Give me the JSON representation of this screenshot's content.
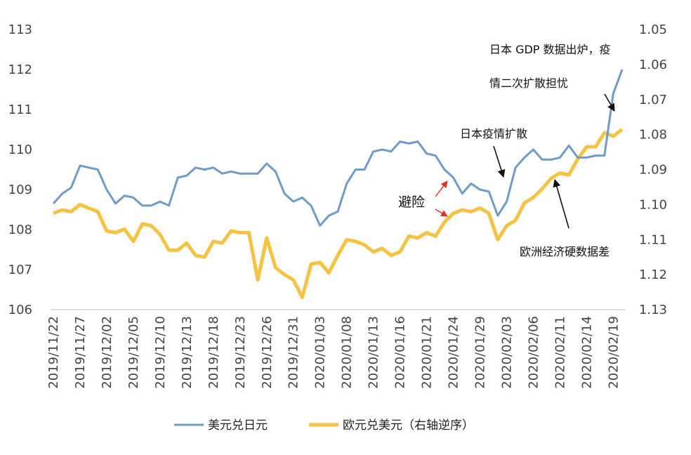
{
  "chart_data": {
    "type": "line",
    "categories": [
      "2019/11/22",
      null,
      null,
      "2019/11/27",
      null,
      null,
      "2019/12/02",
      null,
      null,
      "2019/12/05",
      null,
      null,
      "2019/12/10",
      null,
      null,
      "2019/12/13",
      null,
      null,
      "2019/12/18",
      null,
      null,
      "2019/12/23",
      null,
      null,
      "2019/12/26",
      null,
      null,
      "2019/12/31",
      null,
      null,
      "2020/01/03",
      null,
      null,
      "2020/01/08",
      null,
      null,
      "2020/01/13",
      null,
      null,
      "2020/01/16",
      null,
      null,
      "2020/01/21",
      null,
      null,
      "2020/01/24",
      null,
      null,
      "2020/01/29",
      null,
      null,
      "2020/02/03",
      null,
      null,
      "2020/02/06",
      null,
      null,
      "2020/02/11",
      null,
      null,
      "2020/02/14",
      null,
      null,
      "2020/02/19",
      null
    ],
    "series": [
      {
        "name": "美元兑日元",
        "color": "#6f9bc9",
        "values": [
          108.65,
          108.9,
          109.05,
          109.6,
          109.55,
          109.5,
          109.0,
          108.65,
          108.85,
          108.8,
          108.6,
          108.6,
          108.7,
          108.6,
          109.3,
          109.35,
          109.55,
          109.5,
          109.55,
          109.4,
          109.45,
          109.4,
          109.4,
          109.4,
          109.65,
          109.45,
          108.9,
          108.7,
          108.8,
          108.6,
          108.1,
          108.35,
          108.45,
          109.15,
          109.5,
          109.5,
          109.95,
          110.0,
          109.95,
          110.2,
          110.15,
          110.2,
          109.9,
          109.85,
          109.5,
          109.3,
          108.9,
          109.15,
          109.0,
          108.95,
          108.35,
          108.7,
          109.55,
          109.8,
          110.0,
          109.75,
          109.75,
          109.8,
          110.1,
          109.8,
          109.8,
          109.85,
          109.85,
          111.4,
          112.0
        ]
      },
      {
        "name": "欧元兑美元（右轴逆序）",
        "color": "#f5c242",
        "axis": "y2",
        "values": [
          1.1025,
          1.1015,
          1.102,
          1.1,
          1.101,
          1.102,
          1.1075,
          1.108,
          1.107,
          1.1105,
          1.1055,
          1.106,
          1.1085,
          1.113,
          1.113,
          1.111,
          1.1145,
          1.115,
          1.1105,
          1.111,
          1.1075,
          1.108,
          1.108,
          1.1215,
          1.1095,
          1.118,
          1.12,
          1.1215,
          1.1265,
          1.117,
          1.1165,
          1.1195,
          1.1145,
          1.11,
          1.1105,
          1.1115,
          1.1135,
          1.1125,
          1.1145,
          1.1135,
          1.109,
          1.1095,
          1.108,
          1.109,
          1.105,
          1.1025,
          1.1015,
          1.102,
          1.101,
          1.1025,
          1.11,
          1.106,
          1.1045,
          1.0995,
          1.098,
          1.0955,
          1.0925,
          1.091,
          1.0915,
          1.087,
          1.0835,
          1.0835,
          1.0795,
          1.0805,
          1.0785
        ]
      }
    ],
    "ylim": [
      106,
      113
    ],
    "yticks": [
      106,
      107,
      108,
      109,
      110,
      111,
      112,
      113
    ],
    "y2lim": [
      1.05,
      1.13
    ],
    "y2_reversed": true,
    "y2ticks": [
      1.05,
      1.06,
      1.07,
      1.08,
      1.09,
      {
        "value": 1.1,
        "label": "1.10"
      },
      1.11,
      1.12,
      1.13
    ],
    "grid": false,
    "legend": "bottom",
    "annotations": [
      "日本 GDP 数据出炉，疫",
      "情二次扩散担忧",
      "日本疫情扩散",
      "避险",
      "欧洲经济硬数据差"
    ]
  }
}
